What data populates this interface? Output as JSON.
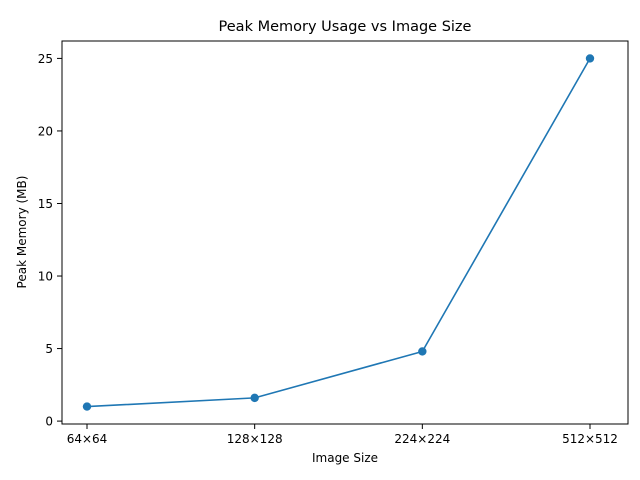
{
  "chart_data": {
    "type": "line",
    "title": "Peak Memory Usage vs Image Size",
    "xlabel": "Image Size",
    "ylabel": "Peak Memory (MB)",
    "categories": [
      "64×64",
      "128×128",
      "224×224",
      "512×512"
    ],
    "series": [
      {
        "values": [
          1.0,
          1.6,
          4.8,
          25.0
        ],
        "color": "#1f77b4",
        "marker": "circle"
      }
    ],
    "y_ticks": [
      0,
      5,
      10,
      15,
      20,
      25
    ],
    "y_tick_labels": [
      "0",
      "5",
      "10",
      "15",
      "20",
      "25"
    ],
    "ylim": [
      -0.2,
      26.2
    ],
    "grid": false,
    "legend": "none"
  }
}
